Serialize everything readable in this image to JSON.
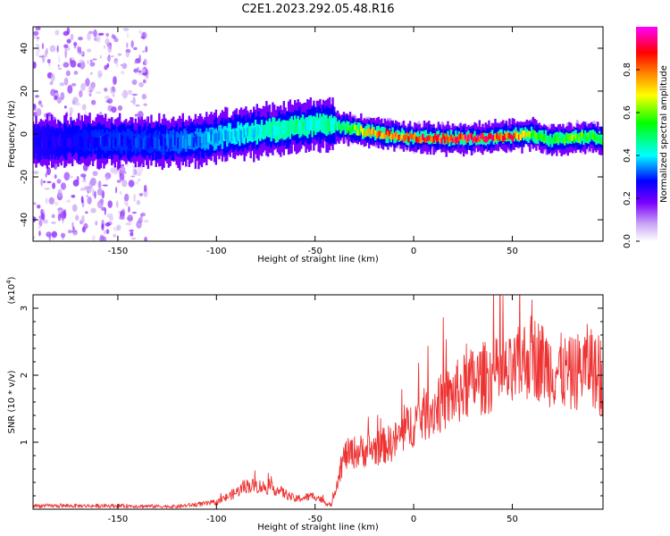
{
  "figure": {
    "title": "C2E1.2023.292.05.48.R16"
  },
  "chart_data": [
    {
      "type": "heatmap",
      "name": "spectrogram",
      "xlabel": "Height of straight line (km)",
      "ylabel": "Frequency (Hz)",
      "xlim": [
        -193,
        96
      ],
      "ylim": [
        -50,
        50
      ],
      "xticks": [
        -150,
        -100,
        -50,
        0,
        50
      ],
      "yticks": [
        -40,
        -20,
        0,
        20,
        40
      ],
      "colorbar": {
        "label": "Normalized spectral amplitude",
        "range": [
          0,
          1
        ],
        "ticks": [
          0.0,
          0.2,
          0.4,
          0.6,
          0.8
        ],
        "colors": [
          "#ffffff",
          "#c9a6f5",
          "#7a00ff",
          "#0000ff",
          "#00ffff",
          "#00ff00",
          "#ffff00",
          "#ff8800",
          "#ff0000",
          "#ff00ff"
        ]
      },
      "ridge": {
        "description": "dominant frequency vs height",
        "x": [
          -193,
          -160,
          -130,
          -110,
          -90,
          -70,
          -55,
          -45,
          -35,
          -25,
          -15,
          0,
          30,
          50,
          60,
          70,
          80,
          90,
          96
        ],
        "freq": [
          -4,
          -3,
          -4,
          -3,
          0,
          2,
          4,
          5,
          3,
          1,
          0,
          -2,
          -2,
          -1,
          0,
          -3,
          -2,
          -1,
          -3
        ],
        "amplitude": [
          0.25,
          0.3,
          0.3,
          0.35,
          0.4,
          0.45,
          0.45,
          0.45,
          0.5,
          0.7,
          0.8,
          0.85,
          0.9,
          0.85,
          0.6,
          0.5,
          0.6,
          0.55,
          0.55
        ]
      },
      "scatter_region": {
        "x_range": [
          -193,
          -135
        ],
        "freq_range": [
          -50,
          50
        ],
        "amplitude": 0.15
      }
    },
    {
      "type": "line",
      "name": "snr",
      "xlabel": "Height of straight line (km)",
      "ylabel": "SNR (10 * v/v)",
      "scale_label": "(x10",
      "scale_exp": "4",
      "scale_close": ")",
      "xlim": [
        -193,
        96
      ],
      "ylim": [
        0,
        3.2
      ],
      "xticks": [
        -150,
        -100,
        -50,
        0,
        50
      ],
      "yticks": [
        1,
        2,
        3
      ],
      "color": "#ee3333",
      "series": [
        {
          "name": "SNR",
          "x": [
            -193,
            -150,
            -120,
            -100,
            -90,
            -85,
            -80,
            -70,
            -60,
            -50,
            -42,
            -38,
            -35,
            -30,
            -20,
            -10,
            0,
            10,
            20,
            30,
            40,
            50,
            55,
            60,
            70,
            80,
            90,
            96
          ],
          "y": [
            0.05,
            0.05,
            0.04,
            0.1,
            0.25,
            0.35,
            0.35,
            0.3,
            0.15,
            0.2,
            0.05,
            0.5,
            0.8,
            0.85,
            0.9,
            1.0,
            1.3,
            1.5,
            1.7,
            1.9,
            2.0,
            2.0,
            2.2,
            2.3,
            2.1,
            2.0,
            2.2,
            1.7
          ]
        }
      ]
    }
  ]
}
